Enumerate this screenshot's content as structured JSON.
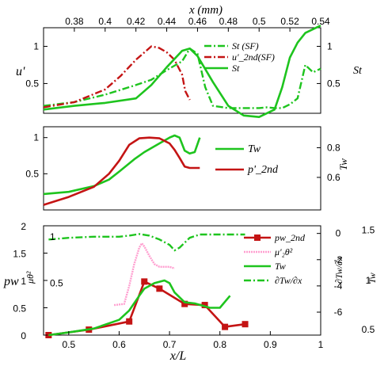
{
  "colors": {
    "green": "#1ec41e",
    "red": "#c41414",
    "pink": "#ff9fd0"
  },
  "chart_data": [
    {
      "type": "line",
      "panel": "top",
      "xlabel": "x (mm)",
      "ylabel": "u'",
      "y2label": "St",
      "xlim": [
        0.36,
        0.54
      ],
      "xticks": [
        "0.38",
        "0.4",
        "0.42",
        "0.44",
        "0.46",
        "0.48",
        "0.5",
        "0.52",
        "0.54"
      ],
      "ylim": [
        0.1,
        1.25
      ],
      "yticks": [
        "1",
        "0.5"
      ],
      "y2ticks": [
        "1",
        "0.5"
      ],
      "legend_position": "top-right",
      "series": [
        {
          "name": "St (SF)",
          "style": "green-dashdot",
          "x": [
            0.36,
            0.38,
            0.4,
            0.42,
            0.43,
            0.44,
            0.45,
            0.455,
            0.46,
            0.465,
            0.47,
            0.48,
            0.49,
            0.5,
            0.505,
            0.51,
            0.515,
            0.52,
            0.525,
            0.53,
            0.535,
            0.54
          ],
          "y": [
            0.2,
            0.25,
            0.35,
            0.48,
            0.55,
            0.68,
            0.8,
            0.97,
            0.9,
            0.45,
            0.2,
            0.17,
            0.17,
            0.17,
            0.18,
            0.17,
            0.17,
            0.22,
            0.3,
            0.75,
            0.65,
            0.7
          ]
        },
        {
          "name": "u'_2nd(SF)",
          "style": "red-dashdot",
          "x": [
            0.36,
            0.38,
            0.4,
            0.41,
            0.42,
            0.43,
            0.435,
            0.44,
            0.445,
            0.45,
            0.452,
            0.455
          ],
          "y": [
            0.18,
            0.25,
            0.42,
            0.6,
            0.82,
            1.0,
            0.98,
            0.92,
            0.82,
            0.62,
            0.4,
            0.28
          ]
        },
        {
          "name": "St",
          "style": "green-solid",
          "x": [
            0.36,
            0.38,
            0.4,
            0.42,
            0.43,
            0.44,
            0.45,
            0.455,
            0.46,
            0.47,
            0.48,
            0.49,
            0.5,
            0.51,
            0.515,
            0.52,
            0.525,
            0.53,
            0.54
          ],
          "y": [
            0.15,
            0.2,
            0.24,
            0.3,
            0.48,
            0.72,
            0.94,
            0.97,
            0.87,
            0.52,
            0.2,
            0.07,
            0.05,
            0.15,
            0.45,
            0.85,
            1.05,
            1.18,
            1.28
          ]
        }
      ]
    },
    {
      "type": "line",
      "panel": "middle",
      "y2label": "Tw",
      "xlim": [
        0.45,
        1.0
      ],
      "ylim": [
        0.0,
        1.15
      ],
      "yticks": [
        "1",
        "0.5"
      ],
      "y2ticks": [
        "0.8",
        "0.6"
      ],
      "legend_position": "right",
      "series": [
        {
          "name": "Tw",
          "style": "green-solid",
          "x": [
            0.45,
            0.5,
            0.55,
            0.58,
            0.6,
            0.63,
            0.65,
            0.68,
            0.7,
            0.71,
            0.72,
            0.73,
            0.74,
            0.75,
            0.76
          ],
          "y": [
            0.22,
            0.25,
            0.33,
            0.42,
            0.53,
            0.7,
            0.8,
            0.92,
            1.0,
            1.03,
            1.0,
            0.82,
            0.78,
            0.8,
            1.0
          ]
        },
        {
          "name": "p'_2nd",
          "style": "red-solid",
          "x": [
            0.45,
            0.5,
            0.55,
            0.58,
            0.6,
            0.62,
            0.64,
            0.66,
            0.68,
            0.7,
            0.71,
            0.72,
            0.73,
            0.74,
            0.76
          ],
          "y": [
            0.07,
            0.18,
            0.32,
            0.5,
            0.68,
            0.9,
            0.99,
            1.0,
            0.99,
            0.92,
            0.83,
            0.72,
            0.6,
            0.58,
            0.58
          ]
        }
      ]
    },
    {
      "type": "line",
      "panel": "bottom",
      "xlabel": "x/L",
      "ylabel": "pw",
      "ylabel_inner": "μθ²",
      "y2label_a": "∂Tw/∂x",
      "y2label_b": "Tw",
      "xlim": [
        0.45,
        1.0
      ],
      "xticks": [
        "0.5",
        "0.6",
        "0.7",
        "0.8",
        "0.9",
        "1"
      ],
      "ylim": [
        0,
        2
      ],
      "yticks": [
        "0",
        "0.5",
        "1",
        "1.5",
        "2"
      ],
      "inner_yticks": [
        "1",
        "0.5"
      ],
      "y2ticks_a": [
        "0",
        "-2",
        "-4",
        "-6"
      ],
      "y2ticks_b": [
        "1.5",
        "1",
        "0.5"
      ],
      "legend_position": "right",
      "series": [
        {
          "name": "pw_2nd",
          "style": "red-square",
          "x": [
            0.46,
            0.54,
            0.62,
            0.65,
            0.68,
            0.73,
            0.77,
            0.81,
            0.85
          ],
          "y": [
            0.0,
            0.1,
            0.25,
            0.98,
            0.85,
            0.57,
            0.55,
            0.15,
            0.2
          ]
        },
        {
          "name": "μ'₂θ²",
          "style": "pink-dotted",
          "x": [
            0.59,
            0.61,
            0.62,
            0.63,
            0.64,
            0.645,
            0.65,
            0.66,
            0.67,
            0.68,
            0.7,
            0.71
          ],
          "y": [
            0.55,
            0.57,
            0.9,
            1.3,
            1.6,
            1.68,
            1.62,
            1.45,
            1.3,
            1.25,
            1.25,
            1.22
          ]
        },
        {
          "name": "Tw",
          "style": "green-solid",
          "x": [
            0.46,
            0.5,
            0.55,
            0.6,
            0.62,
            0.64,
            0.65,
            0.67,
            0.69,
            0.7,
            0.71,
            0.73,
            0.75,
            0.78,
            0.8,
            0.82
          ],
          "y": [
            0.0,
            0.05,
            0.12,
            0.28,
            0.45,
            0.72,
            0.85,
            0.95,
            1.0,
            0.95,
            0.78,
            0.6,
            0.58,
            0.5,
            0.5,
            0.72
          ]
        },
        {
          "name": "∂Tw/∂x",
          "style": "green-dashdot",
          "x": [
            0.46,
            0.5,
            0.55,
            0.6,
            0.62,
            0.64,
            0.66,
            0.68,
            0.7,
            0.71,
            0.72,
            0.74,
            0.76,
            0.8,
            0.85
          ],
          "y": [
            1.75,
            1.78,
            1.8,
            1.8,
            1.82,
            1.85,
            1.82,
            1.75,
            1.65,
            1.55,
            1.6,
            1.78,
            1.84,
            1.84,
            1.84
          ]
        }
      ]
    }
  ]
}
